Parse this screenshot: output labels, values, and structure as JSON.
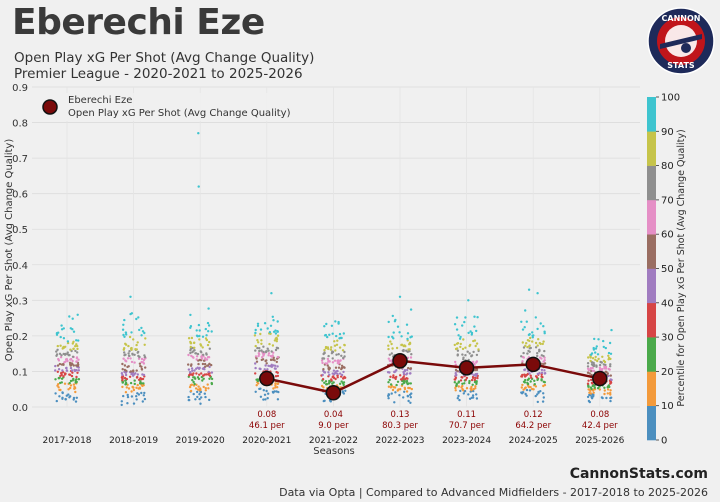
{
  "header": {
    "title": "Eberechi Eze",
    "subtitle1": "Open Play xG Per Shot (Avg Change Quality)",
    "subtitle2": "Premier League - 2020-2021 to 2025-2026"
  },
  "logo": {
    "top_text": "CANNON",
    "bottom_text": "STATS"
  },
  "footer": {
    "site": "CannonStats.com",
    "note": "Data via Opta | Compared to Advanced Midfielders - 2017-2018 to 2025-2026"
  },
  "colors": {
    "player_line": "#7a0a0a",
    "player_marker": "#7a0a0a",
    "annotation": "#8b0000",
    "percentile_bins": [
      "#4c8fbf",
      "#f39a3b",
      "#4aa94a",
      "#d64545",
      "#a07cc0",
      "#9a6e62",
      "#e58fc6",
      "#8f8f8f",
      "#c6c44a",
      "#3ec4cf"
    ]
  },
  "chart_data": {
    "type": "scatter",
    "title": "Open Play xG Per Shot (Avg Change Quality)",
    "xlabel": "Seasons",
    "ylabel": "Open Play xG Per Shot (Avg Change Quality)",
    "ylim": [
      0,
      0.9
    ],
    "yticks": [
      "0.0",
      "0.1",
      "0.2",
      "0.3",
      "0.4",
      "0.5",
      "0.6",
      "0.7",
      "0.8",
      "0.9"
    ],
    "categories": [
      "2017-2018",
      "2018-2019",
      "2019-2020",
      "2020-2021",
      "2021-2022",
      "2022-2023",
      "2023-2024",
      "2024-2025",
      "2025-2026"
    ],
    "distribution_max": [
      0.28,
      0.32,
      0.77,
      0.32,
      0.27,
      0.31,
      0.3,
      0.33,
      0.22
    ],
    "distribution_outliers": [
      [],
      [
        0.31
      ],
      [
        0.62,
        0.77
      ],
      [
        0.32
      ],
      [],
      [
        0.31
      ],
      [
        0.3
      ],
      [
        0.33,
        0.32
      ],
      []
    ],
    "legend": {
      "label1": "Eberechi Eze",
      "label2": "Open Play xG Per Shot (Avg Change Quality)",
      "position": "top-left"
    },
    "colorbar": {
      "label": "Percentile for Open Play xG Per Shot (Avg Change Quality)",
      "ticks": [
        "0",
        "10",
        "20",
        "30",
        "40",
        "50",
        "60",
        "70",
        "80",
        "90",
        "100"
      ]
    },
    "series": [
      {
        "name": "Eberechi Eze",
        "x": [
          "2020-2021",
          "2021-2022",
          "2022-2023",
          "2023-2024",
          "2024-2025",
          "2025-2026"
        ],
        "values": [
          0.08,
          0.04,
          0.13,
          0.11,
          0.12,
          0.08
        ],
        "value_labels": [
          "0.08",
          "0.04",
          "0.13",
          "0.11",
          "0.12",
          "0.08"
        ],
        "percentile_labels": [
          "46.1 per",
          "9.0 per",
          "80.3 per",
          "70.7 per",
          "64.2 per",
          "42.4 per"
        ]
      }
    ]
  }
}
